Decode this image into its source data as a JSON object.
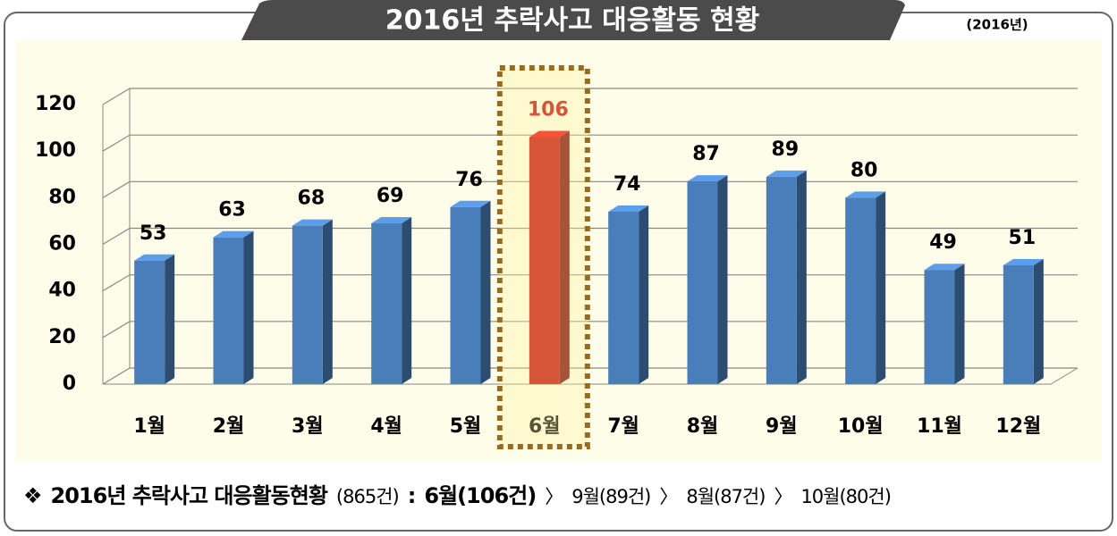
{
  "chart_data": {
    "type": "bar3d",
    "title": "2016년 추락사고 대응활동 현황",
    "badge": "(2016년)",
    "categories": [
      "1월",
      "2월",
      "3월",
      "4월",
      "5월",
      "6월",
      "7월",
      "8월",
      "9월",
      "10월",
      "11월",
      "12월"
    ],
    "values": [
      53,
      63,
      68,
      69,
      76,
      106,
      74,
      87,
      89,
      80,
      49,
      51
    ],
    "colors": [
      "#4a7ebb",
      "#4a7ebb",
      "#4a7ebb",
      "#4a7ebb",
      "#4a7ebb",
      "#c00000",
      "#4a7ebb",
      "#4a7ebb",
      "#4a7ebb",
      "#4a7ebb",
      "#4a7ebb",
      "#4a7ebb"
    ],
    "ylim": [
      0,
      120
    ],
    "yticks": [
      0,
      20,
      40,
      60,
      80,
      100,
      120
    ],
    "grid": true,
    "summary": [
      {
        "text": "❖",
        "bold": true
      },
      {
        "text": "2016년 추락사고 대응활동현황",
        "bold": true
      },
      {
        "text": "(865건)",
        "bold": false
      },
      {
        "text": ":",
        "bold": true
      },
      {
        "text": "6월(106건)",
        "bold": true
      },
      {
        "text": "〉",
        "bold": false
      },
      {
        "text": "9월(89건)",
        "bold": false
      },
      {
        "text": "〉",
        "bold": false
      },
      {
        "text": "8월(87건)",
        "bold": false
      },
      {
        "text": "〉",
        "bold": false
      },
      {
        "text": "10월(80건)",
        "bold": false
      }
    ]
  }
}
